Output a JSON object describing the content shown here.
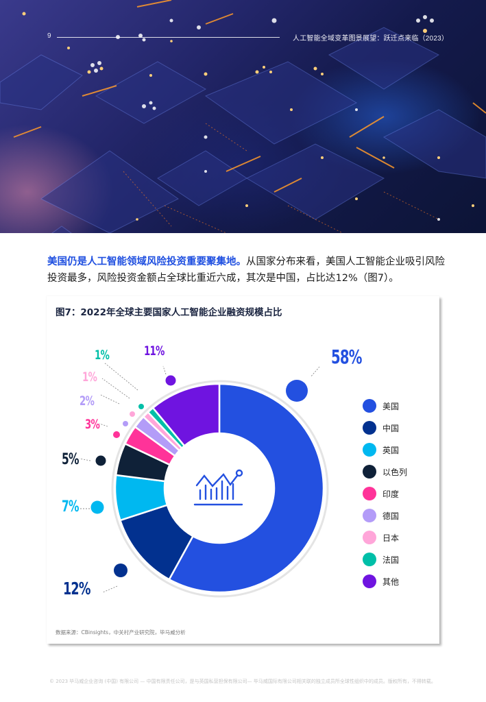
{
  "header": {
    "page_number": "9",
    "report_title": "人工智能全域变革图景展望：跃迁点来临（2023）"
  },
  "intro": {
    "lead": "美国仍是人工智能领域风险投资重要聚集地。",
    "body": "从国家分布来看，美国人工智能企业吸引风险投资最多，风险投资金额占全球比重近六成，其次是中国，占比达12%（图7）。"
  },
  "figure": {
    "title": "图7：2022年全球主要国家人工智能企业融资规模占比",
    "center_icon": "chart-growth-icon",
    "source": "数据来源：CBinsights，中关村产业研究院，毕马威分析"
  },
  "chart_data": {
    "type": "pie",
    "variant": "donut",
    "title": "图7：2022年全球主要国家人工智能企业融资规模占比",
    "categories": [
      "美国",
      "中国",
      "英国",
      "以色列",
      "印度",
      "德国",
      "日本",
      "法国",
      "其他"
    ],
    "values": [
      58,
      12,
      7,
      5,
      3,
      2,
      1,
      1,
      11
    ],
    "labels": [
      "58%",
      "12%",
      "7%",
      "5%",
      "3%",
      "2%",
      "1%",
      "1%",
      "11%"
    ],
    "colors": [
      "#2350e0",
      "#02318f",
      "#00b8f0",
      "#0f2138",
      "#ff3399",
      "#b39cf8",
      "#ffa6d9",
      "#00bfa8",
      "#6f14e0"
    ],
    "unit": "%",
    "legend_position": "right",
    "source": "数据来源：CBinsights，中关村产业研究院，毕马威分析"
  },
  "legend": {
    "items": [
      {
        "label": "美国",
        "color": "#2350e0"
      },
      {
        "label": "中国",
        "color": "#02318f"
      },
      {
        "label": "英国",
        "color": "#00b8f0"
      },
      {
        "label": "以色列",
        "color": "#0f2138"
      },
      {
        "label": "印度",
        "color": "#ff3399"
      },
      {
        "label": "德国",
        "color": "#b39cf8"
      },
      {
        "label": "日本",
        "color": "#ffa6d9"
      },
      {
        "label": "法国",
        "color": "#00bfa8"
      },
      {
        "label": "其他",
        "color": "#6f14e0"
      }
    ]
  },
  "footer": {
    "copyright": "© 2023 毕马威企业咨询 (中国) 有限公司 — 中国有限责任公司，是与英国私营担保有限公司— 毕马威国际有限公司相关联的独立成员所全球性组织中的成员。版权所有，不得转载。"
  }
}
